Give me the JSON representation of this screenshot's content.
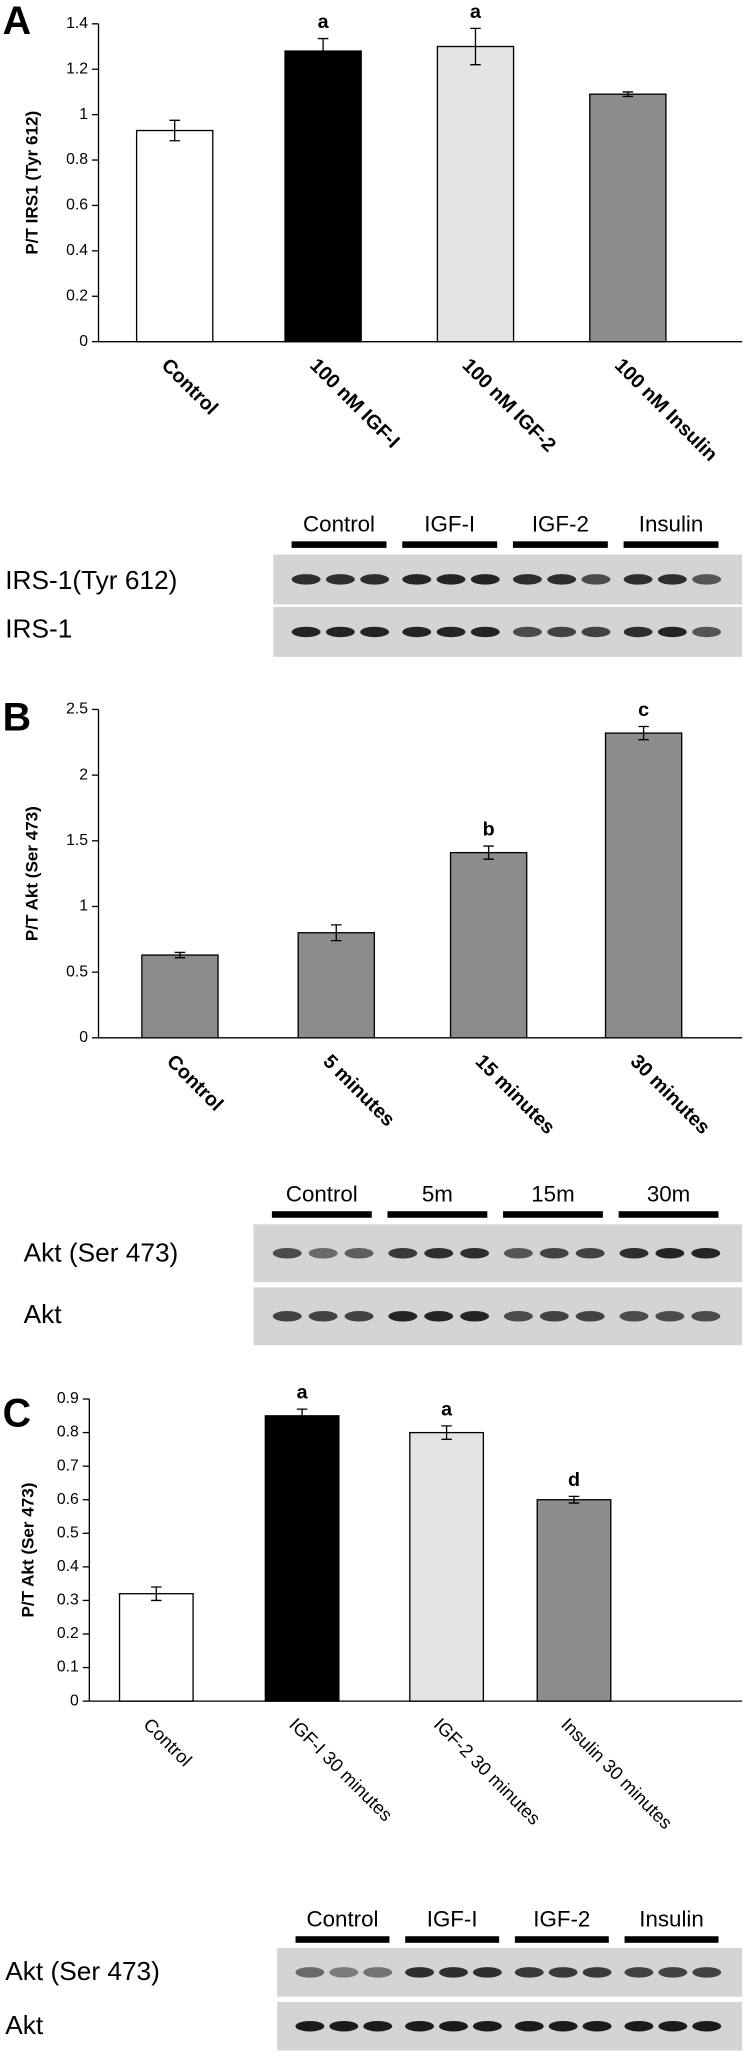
{
  "panel_labels": [
    "A",
    "B",
    "C"
  ],
  "chart_data": [
    {
      "type": "bar",
      "ylabel": "P/T IRS1 (Tyr 612)",
      "categories": [
        "Control",
        "100 nM IGF-I",
        "100 nM IGF-2",
        "100 nM Insulin"
      ],
      "values": [
        0.93,
        1.28,
        1.3,
        1.09
      ],
      "errors": [
        0.045,
        0.055,
        0.08,
        0.01
      ],
      "colors": [
        "#ffffff",
        "#000000",
        "#e4e4e4",
        "#8c8c8c"
      ],
      "annotations": [
        null,
        "a",
        "a",
        null
      ],
      "ylim": [
        0,
        1.4
      ],
      "yticks": [
        0,
        0.2,
        0.4,
        0.6,
        0.8,
        1,
        1.2,
        1.4
      ]
    },
    {
      "type": "bar",
      "ylabel": "P/T Akt (Ser 473)",
      "categories": [
        "Control",
        "5 minutes",
        "15 minutes",
        "30 minutes"
      ],
      "values": [
        0.63,
        0.8,
        1.41,
        2.32
      ],
      "errors": [
        0.02,
        0.06,
        0.05,
        0.05
      ],
      "colors": [
        "#8c8c8c",
        "#8c8c8c",
        "#8c8c8c",
        "#8c8c8c"
      ],
      "annotations": [
        null,
        null,
        "b",
        "c"
      ],
      "ylim": [
        0,
        2.5
      ],
      "yticks": [
        0,
        0.5,
        1,
        1.5,
        2,
        2.5
      ]
    },
    {
      "type": "bar",
      "ylabel": "P/T Akt (Ser 473)",
      "categories": [
        "Control",
        "IGF-I 30 minutes",
        "IGF-2 30 minutes",
        "Insulin 30 minutes"
      ],
      "values": [
        0.32,
        0.85,
        0.8,
        0.6
      ],
      "errors": [
        0.02,
        0.02,
        0.02,
        0.01
      ],
      "colors": [
        "#ffffff",
        "#000000",
        "#e4e4e4",
        "#8c8c8c"
      ],
      "annotations": [
        null,
        "a",
        "a",
        "d"
      ],
      "ylim": [
        0,
        0.9
      ],
      "yticks": [
        0,
        0.1,
        0.2,
        0.3,
        0.4,
        0.5,
        0.6,
        0.7,
        0.8,
        0.9
      ]
    }
  ],
  "blots": [
    {
      "lanes": [
        "Control",
        "IGF-I",
        "IGF-2",
        "Insulin"
      ],
      "rows": [
        "IRS-1(Tyr 612)",
        "IRS-1"
      ]
    },
    {
      "lanes": [
        "Control",
        "5m",
        "15m",
        "30m"
      ],
      "rows": [
        "Akt  (Ser 473)",
        "Akt"
      ]
    },
    {
      "lanes": [
        "Control",
        "IGF-I",
        "IGF-2",
        "Insulin"
      ],
      "rows": [
        "Akt (Ser 473)",
        "Akt"
      ]
    }
  ]
}
